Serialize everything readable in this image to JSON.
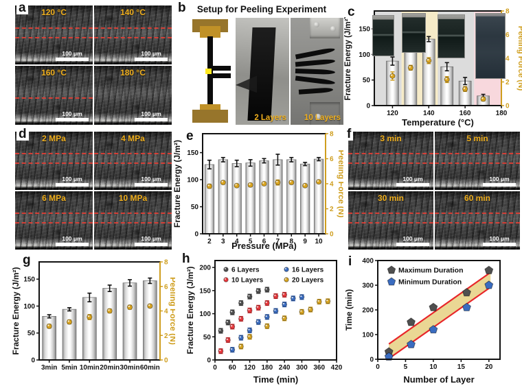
{
  "scale_label": "100 μm",
  "panels": {
    "a": {
      "label": "a",
      "tiles": [
        "120 °C",
        "140 °C",
        "160 °C",
        "180 °C"
      ]
    },
    "b": {
      "label": "b",
      "title": "Setup for Peeling Experiment",
      "photo_labels": [
        "2 Layers",
        "10 Layers"
      ]
    },
    "c": {
      "label": "c"
    },
    "d": {
      "label": "d",
      "tiles": [
        "2 MPa",
        "4 MPa",
        "6 MPa",
        "10 MPa"
      ]
    },
    "e": {
      "label": "e"
    },
    "f": {
      "label": "f",
      "tiles": [
        "3 min",
        "5 min",
        "30 min",
        "60 min"
      ]
    },
    "g": {
      "label": "g"
    },
    "h": {
      "label": "h"
    },
    "i": {
      "label": "i"
    }
  },
  "chart_data": [
    {
      "id": "c",
      "type": "bar",
      "xlabel": "Temperature (°C)",
      "ylabel": "Fracture Energy (J/m²)",
      "y2label": "Peeling Force (N)",
      "x_numeric": true,
      "xlim": [
        110,
        180
      ],
      "x_ticks": [
        120,
        140,
        160,
        180
      ],
      "categories": [
        120,
        130,
        140,
        150,
        160,
        170
      ],
      "bar_values": [
        87,
        110,
        130,
        76,
        48,
        19
      ],
      "bar_errors": [
        8,
        5,
        5,
        8,
        7,
        3
      ],
      "point_values": [
        2.5,
        3.2,
        3.8,
        2.2,
        1.4,
        0.55
      ],
      "point_errors": [
        0.35,
        0.2,
        0.25,
        0.25,
        0.2,
        0.15
      ],
      "ylim": [
        0,
        185
      ],
      "y_ticks": [
        0,
        50,
        100,
        150
      ],
      "y2lim": [
        0,
        8
      ],
      "y2_ticks": [
        0,
        2,
        4,
        6,
        8
      ],
      "bands": [
        {
          "from": 110,
          "to": 125,
          "color": "#dcdcdc"
        },
        {
          "from": 125,
          "to": 145,
          "color": "#f6ebc8"
        },
        {
          "from": 145,
          "to": 165,
          "color": "#dcdcdc"
        },
        {
          "from": 165,
          "to": 180,
          "color": "#f8d8dd"
        }
      ],
      "accent": "#cf9e1e"
    },
    {
      "id": "e",
      "type": "bar",
      "xlabel": "Pressure (MPa)",
      "ylabel": "Fracture Energy (J/m²)",
      "y2label": "Peeling Force (N)",
      "x_numeric": false,
      "categories": [
        "2",
        "3",
        "4",
        "5",
        "6",
        "7",
        "8",
        "9",
        "10"
      ],
      "bar_values": [
        128,
        137,
        130,
        131,
        135,
        137,
        137,
        129,
        138
      ],
      "bar_errors": [
        8,
        4,
        6,
        6,
        4,
        10,
        4,
        3,
        3
      ],
      "point_values": [
        3.8,
        4.1,
        3.85,
        3.9,
        4.0,
        4.1,
        4.1,
        3.85,
        4.15
      ],
      "point_errors": [
        0.15,
        0.1,
        0.1,
        0.12,
        0.1,
        0.2,
        0.12,
        0.08,
        0.1
      ],
      "ylim": [
        0,
        185
      ],
      "y_ticks": [
        0,
        50,
        100,
        150
      ],
      "y2lim": [
        0,
        8
      ],
      "y2_ticks": [
        0,
        2,
        4,
        6,
        8
      ],
      "accent": "#cf9e1e"
    },
    {
      "id": "g",
      "type": "bar",
      "xlabel": "",
      "ylabel": "Fracture Energy (J/m²)",
      "y2label": "Peeling Force (N)",
      "x_numeric": false,
      "categories": [
        "3min",
        "5min",
        "10min",
        "20min",
        "30min",
        "60min"
      ],
      "bar_values": [
        81,
        94,
        116,
        133,
        143,
        147
      ],
      "bar_errors": [
        3,
        3,
        8,
        6,
        6,
        5
      ],
      "point_values": [
        2.75,
        3.1,
        3.5,
        4.0,
        4.3,
        4.4
      ],
      "point_errors": [
        0.15,
        0.15,
        0.2,
        0.15,
        0.15,
        0.12
      ],
      "ylim": [
        0,
        182
      ],
      "y_ticks": [
        0,
        50,
        100,
        150
      ],
      "y2lim": [
        0,
        8
      ],
      "y2_ticks": [
        0,
        2,
        4,
        6,
        8
      ],
      "accent": "#cf9e1e"
    },
    {
      "id": "h",
      "type": "scatter",
      "xlabel": "Time (min)",
      "ylabel": "Fracture Energy (J/m²)",
      "xlim": [
        0,
        420
      ],
      "x_ticks": [
        0,
        60,
        120,
        180,
        240,
        300,
        360,
        420
      ],
      "ylim": [
        0,
        215
      ],
      "y_ticks": [
        0,
        50,
        100,
        150,
        200
      ],
      "series": [
        {
          "name": "6 Layers",
          "color": "#4f4f4f",
          "x": [
            20,
            45,
            60,
            90,
            120,
            150,
            180
          ],
          "y": [
            63,
            81,
            103,
            123,
            137,
            149,
            152
          ],
          "err": 5
        },
        {
          "name": "10 Layers",
          "color": "#e8383c",
          "x": [
            20,
            45,
            60,
            90,
            120,
            150,
            180,
            210,
            240
          ],
          "y": [
            19,
            43,
            72,
            89,
            107,
            113,
            123,
            138,
            141
          ],
          "err": 5
        },
        {
          "name": "16 Layers",
          "color": "#3a6cc0",
          "x": [
            60,
            90,
            120,
            150,
            180,
            210,
            240,
            270,
            300
          ],
          "y": [
            22,
            48,
            64,
            82,
            93,
            106,
            120,
            133,
            136
          ],
          "err": 5
        },
        {
          "name": "20 Layers",
          "color": "#d5a321",
          "x": [
            90,
            120,
            180,
            240,
            300,
            330,
            360,
            390
          ],
          "y": [
            29,
            50,
            73,
            90,
            104,
            109,
            126,
            127
          ],
          "err": 5
        }
      ]
    },
    {
      "id": "i",
      "type": "scatter",
      "xlabel": "Number of Layer",
      "ylabel": "Time (min)",
      "xlim": [
        0,
        22
      ],
      "x_ticks": [
        0,
        5,
        10,
        15,
        20
      ],
      "ylim": [
        0,
        400
      ],
      "y_ticks": [
        0,
        100,
        200,
        300,
        400
      ],
      "series": [
        {
          "name": "Maximum Duration",
          "color": "#4f4f4f",
          "x": [
            2,
            6,
            10,
            16,
            20
          ],
          "y": [
            30,
            150,
            210,
            270,
            360
          ]
        },
        {
          "name": "Minimum Duration",
          "color": "#3a6cc0",
          "x": [
            2,
            6,
            10,
            16,
            20
          ],
          "y": [
            10,
            60,
            120,
            210,
            300
          ]
        }
      ],
      "band": {
        "color": "#ead794",
        "line_color": "#e8262a",
        "upper": [
          [
            2,
            62
          ],
          [
            20.3,
            352
          ]
        ],
        "lower": [
          [
            2,
            3
          ],
          [
            20.3,
            292
          ]
        ]
      }
    }
  ]
}
